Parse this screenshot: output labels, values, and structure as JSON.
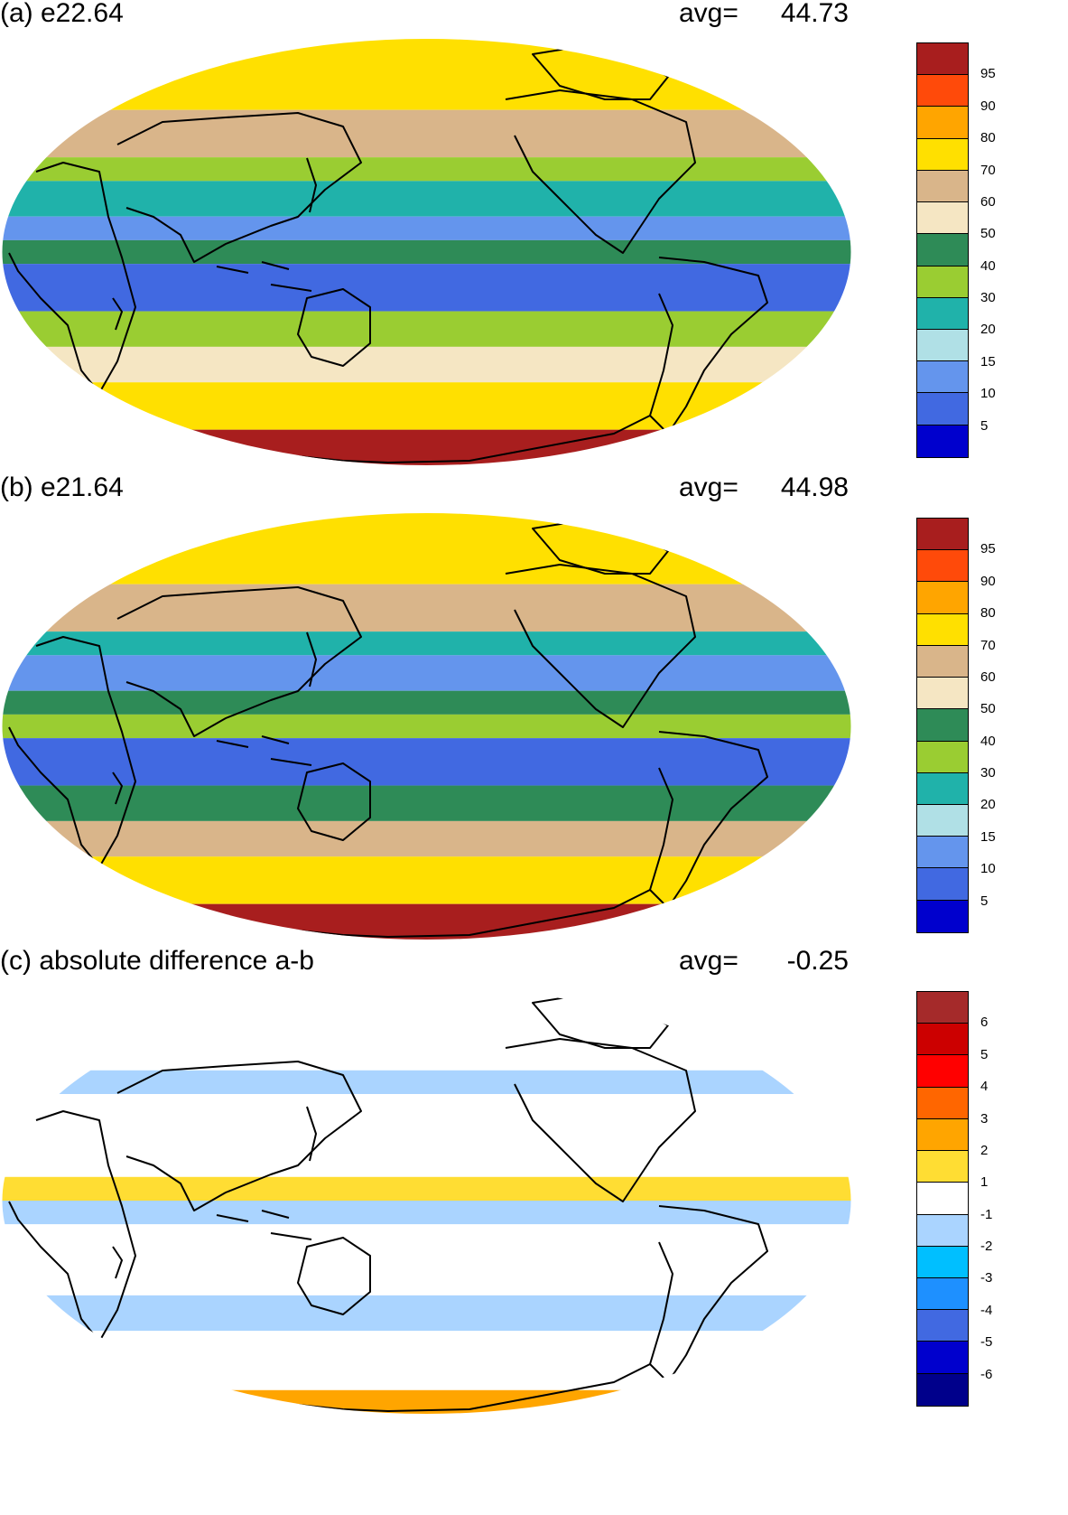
{
  "panels": [
    {
      "id": "a",
      "title": "(a) e22.64",
      "avg_label": "avg=",
      "avg_value": "44.73",
      "colorbar": {
        "colors": [
          "#a81e1e",
          "#ff4a0a",
          "#ffa500",
          "#ffe000",
          "#d9b58a",
          "#f5e6c3",
          "#2e8b57",
          "#9acd32",
          "#20b2aa",
          "#b0e0e6",
          "#6495ed",
          "#4169e1",
          "#0000cd"
        ],
        "ticks": [
          "95",
          "90",
          "80",
          "70",
          "60",
          "50",
          "40",
          "30",
          "20",
          "15",
          "10",
          "5"
        ]
      },
      "bands": [
        {
          "lat_from": 90,
          "lat_to": 60,
          "color": "#ffe000"
        },
        {
          "lat_from": 60,
          "lat_to": 40,
          "color": "#d9b58a"
        },
        {
          "lat_from": 40,
          "lat_to": 30,
          "color": "#9acd32"
        },
        {
          "lat_from": 30,
          "lat_to": 15,
          "color": "#20b2aa"
        },
        {
          "lat_from": 15,
          "lat_to": 5,
          "color": "#6495ed"
        },
        {
          "lat_from": 5,
          "lat_to": -5,
          "color": "#2e8b57"
        },
        {
          "lat_from": -5,
          "lat_to": -25,
          "color": "#4169e1"
        },
        {
          "lat_from": -25,
          "lat_to": -40,
          "color": "#9acd32"
        },
        {
          "lat_from": -40,
          "lat_to": -55,
          "color": "#f5e6c3"
        },
        {
          "lat_from": -55,
          "lat_to": -75,
          "color": "#ffe000"
        },
        {
          "lat_from": -75,
          "lat_to": -90,
          "color": "#a81e1e"
        }
      ]
    },
    {
      "id": "b",
      "title": "(b) e21.64",
      "avg_label": "avg=",
      "avg_value": "44.98",
      "colorbar": {
        "colors": [
          "#a81e1e",
          "#ff4a0a",
          "#ffa500",
          "#ffe000",
          "#d9b58a",
          "#f5e6c3",
          "#2e8b57",
          "#9acd32",
          "#20b2aa",
          "#b0e0e6",
          "#6495ed",
          "#4169e1",
          "#0000cd"
        ],
        "ticks": [
          "95",
          "90",
          "80",
          "70",
          "60",
          "50",
          "40",
          "30",
          "20",
          "15",
          "10",
          "5"
        ]
      },
      "bands": [
        {
          "lat_from": 90,
          "lat_to": 60,
          "color": "#ffe000"
        },
        {
          "lat_from": 60,
          "lat_to": 40,
          "color": "#d9b58a"
        },
        {
          "lat_from": 40,
          "lat_to": 30,
          "color": "#20b2aa"
        },
        {
          "lat_from": 30,
          "lat_to": 15,
          "color": "#6495ed"
        },
        {
          "lat_from": 15,
          "lat_to": 5,
          "color": "#2e8b57"
        },
        {
          "lat_from": 5,
          "lat_to": -5,
          "color": "#9acd32"
        },
        {
          "lat_from": -5,
          "lat_to": -25,
          "color": "#4169e1"
        },
        {
          "lat_from": -25,
          "lat_to": -40,
          "color": "#2e8b57"
        },
        {
          "lat_from": -40,
          "lat_to": -55,
          "color": "#d9b58a"
        },
        {
          "lat_from": -55,
          "lat_to": -75,
          "color": "#ffe000"
        },
        {
          "lat_from": -75,
          "lat_to": -90,
          "color": "#a81e1e"
        }
      ]
    },
    {
      "id": "c",
      "title": "(c) absolute difference a-b",
      "avg_label": "avg=",
      "avg_value": "-0.25",
      "colorbar": {
        "colors": [
          "#a52a2a",
          "#cc0000",
          "#ff0000",
          "#ff6600",
          "#ffa500",
          "#ffdd33",
          "#ffffff",
          "#aad4ff",
          "#00bfff",
          "#1e90ff",
          "#4169e1",
          "#0000cd",
          "#00008b"
        ],
        "ticks": [
          "6",
          "5",
          "4",
          "3",
          "2",
          "1",
          "-1",
          "-2",
          "-3",
          "-4",
          "-5",
          "-6"
        ]
      },
      "bands": [
        {
          "lat_from": 90,
          "lat_to": 55,
          "color": "#ffffff"
        },
        {
          "lat_from": 55,
          "lat_to": 45,
          "color": "#aad4ff"
        },
        {
          "lat_from": 45,
          "lat_to": 10,
          "color": "#ffffff"
        },
        {
          "lat_from": 10,
          "lat_to": 0,
          "color": "#ffdd33"
        },
        {
          "lat_from": 0,
          "lat_to": -10,
          "color": "#aad4ff"
        },
        {
          "lat_from": -10,
          "lat_to": -40,
          "color": "#ffffff"
        },
        {
          "lat_from": -40,
          "lat_to": -55,
          "color": "#aad4ff"
        },
        {
          "lat_from": -55,
          "lat_to": -80,
          "color": "#ffffff"
        },
        {
          "lat_from": -80,
          "lat_to": -90,
          "color": "#ffa500"
        }
      ]
    }
  ]
}
